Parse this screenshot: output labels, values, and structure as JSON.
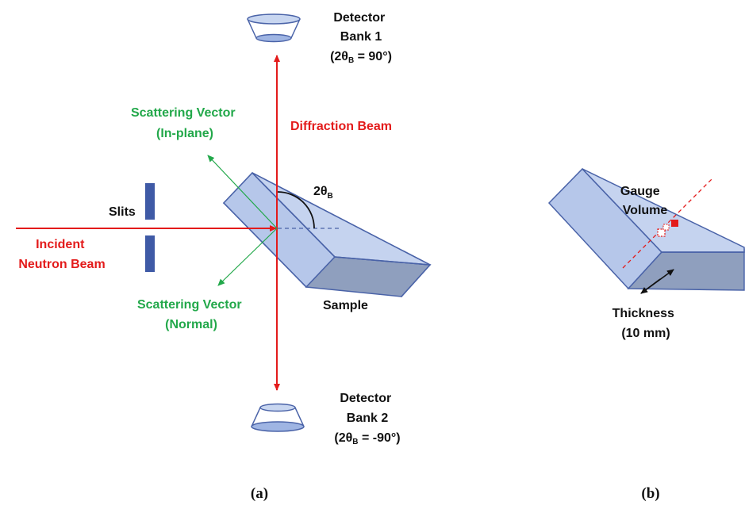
{
  "colors": {
    "incident": "#e31b1b",
    "diffraction": "#e31b1b",
    "scattering_vector": "#22a84a",
    "sample_top": "#c5d3ef",
    "sample_side": "#a9bde3",
    "sample_front": "#8f9fbe",
    "sample_edge": "#4a63a8",
    "slit": "#3f5aa6",
    "detector_fill": "#c8d6f0",
    "gauge_marker": "#e31b1b"
  },
  "panel_a": {
    "label": "(a)",
    "detector_bank_1": {
      "line1": "Detector",
      "line2": "Bank 1",
      "line3_prefix": "(2θ",
      "line3_sub": "B",
      "line3_suffix": " = 90°)"
    },
    "detector_bank_2": {
      "line1": "Detector",
      "line2": "Bank 2",
      "line3_prefix": "(2θ",
      "line3_sub": "B",
      "line3_suffix": " = -90°)"
    },
    "diffraction_beam": "Diffraction Beam",
    "scattering_inplane": {
      "line1": "Scattering Vector",
      "line2": "(In-plane)"
    },
    "scattering_normal": {
      "line1": "Scattering Vector",
      "line2": "(Normal)"
    },
    "slits": "Slits",
    "incident_beam": {
      "line1": "Incident",
      "line2": "Neutron Beam"
    },
    "angle": {
      "prefix": "2θ",
      "sub": "B"
    },
    "sample": "Sample"
  },
  "panel_b": {
    "label": "(b)",
    "gauge_volume": {
      "line1": "Gauge",
      "line2": "Volume"
    },
    "thickness": {
      "line1": "Thickness",
      "line2": "(10 mm)"
    }
  }
}
